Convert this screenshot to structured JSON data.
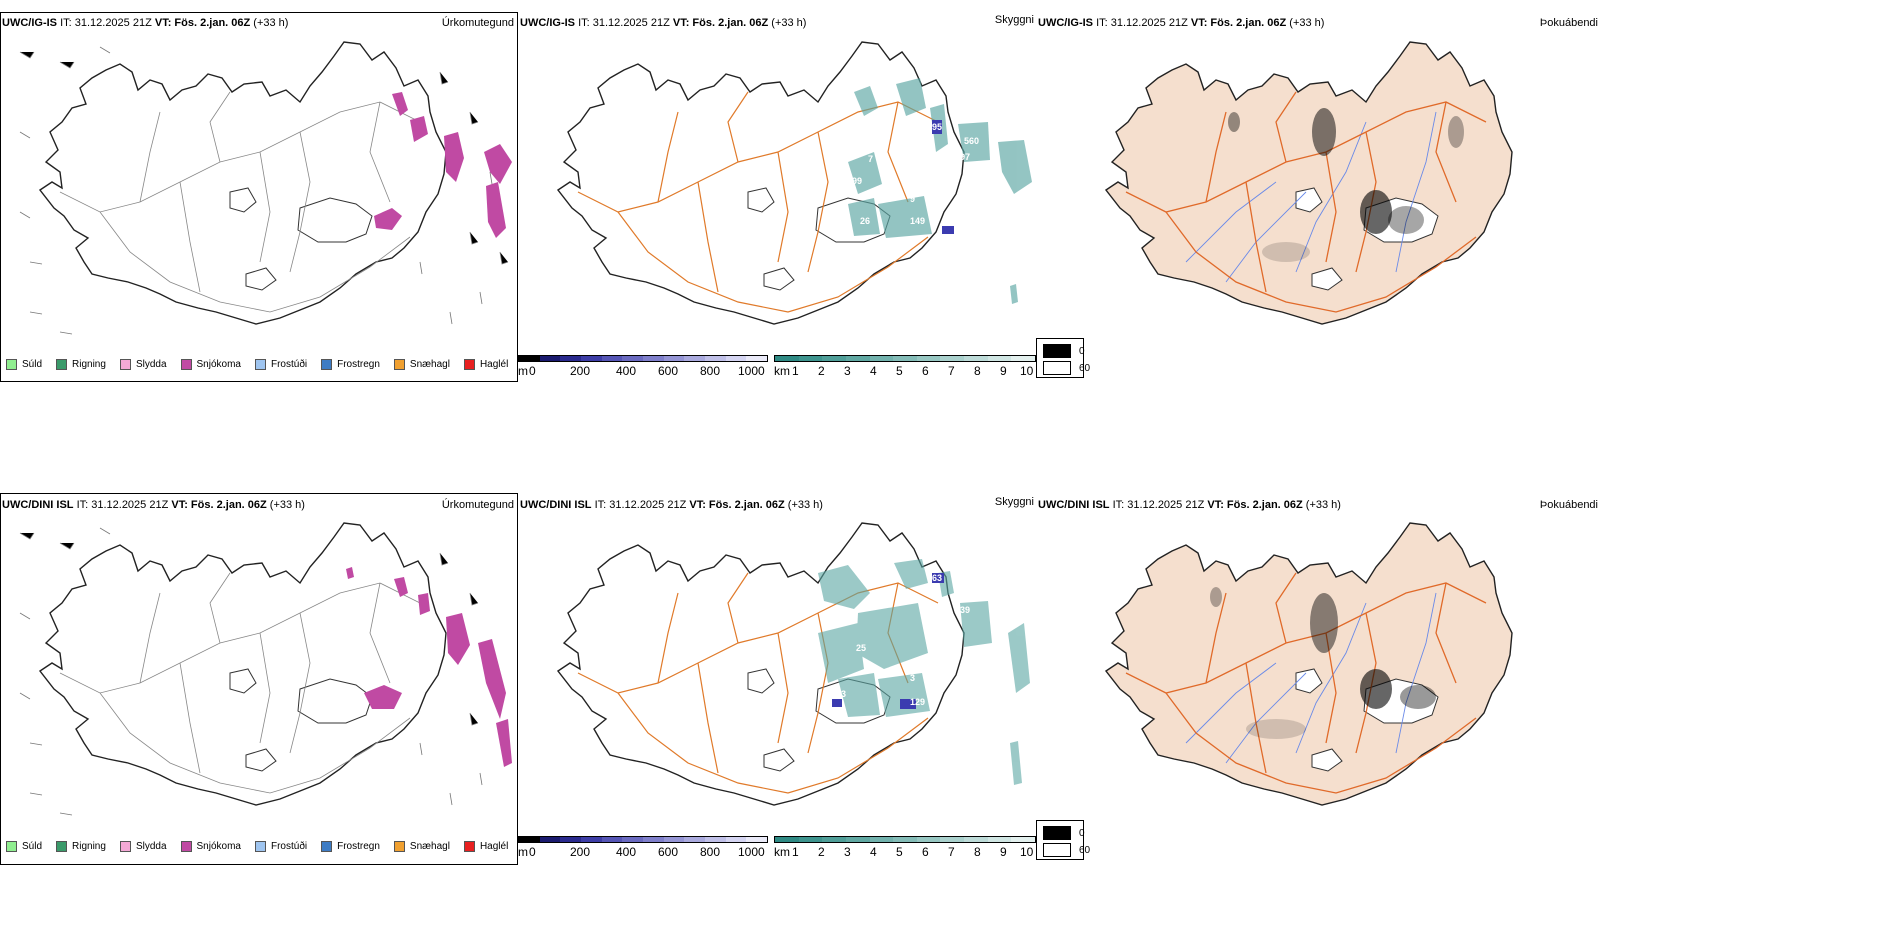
{
  "rows": [
    {
      "model": "UWC/IG-IS",
      "it": "IT: 31.12.2025 21Z",
      "vt_label": "VT:",
      "vt": "Fös. 2.jan. 06Z",
      "lead": "(+33 h)",
      "ceiling_labels": [
        "95",
        "560",
        "97",
        "7",
        "99",
        "9",
        "26",
        "149"
      ]
    },
    {
      "model": "UWC/DINI ISL",
      "it": "IT: 31.12.2025 21Z",
      "vt_label": "VT:",
      "vt": "Fös. 2.jan. 06Z",
      "lead": "(+33 h)",
      "ceiling_labels": [
        "63",
        "39",
        "25",
        "13",
        "3",
        "129"
      ]
    }
  ],
  "panel_titles": {
    "precip": "Úrkomutegund",
    "cloud": "Skyggni",
    "fog": "Þokuábendi"
  },
  "precip_legend": [
    {
      "label": "Súld",
      "color": "#90ee90"
    },
    {
      "label": "Rigning",
      "color": "#3a9a6a"
    },
    {
      "label": "Slydda",
      "color": "#f4a9d6"
    },
    {
      "label": "Snjókoma",
      "color": "#c04aa3"
    },
    {
      "label": "Frostúði",
      "color": "#9fc5f0"
    },
    {
      "label": "Frostregn",
      "color": "#3e7cc4"
    },
    {
      "label": "Snæhagl",
      "color": "#f0a030"
    },
    {
      "label": "Haglél",
      "color": "#e82020"
    }
  ],
  "ceiling_bar": {
    "unit": "m",
    "ticks": [
      "0",
      "200",
      "400",
      "600",
      "800",
      "1000"
    ],
    "colors": [
      "#000000",
      "#1a1a6e",
      "#2a2a8e",
      "#3d3da6",
      "#5555b5",
      "#6a6ac0",
      "#7f7fcb",
      "#9595d5",
      "#aaaade",
      "#c0c0e8",
      "#d5d5f2",
      "#eaeaf8"
    ]
  },
  "visibility_bar": {
    "unit": "km",
    "ticks": [
      "1",
      "2",
      "3",
      "4",
      "5",
      "6",
      "7",
      "8",
      "9",
      "10"
    ],
    "colors": [
      "#2f8a84",
      "#3e948e",
      "#4f9e98",
      "#60a8a2",
      "#72b2ad",
      "#84bcb7",
      "#97c7c2",
      "#aad1cd",
      "#bddbd8",
      "#d0e6e3",
      "#e3f0ee"
    ]
  },
  "fog_legend": {
    "values": [
      "0",
      "60"
    ]
  },
  "colors": {
    "snow": "#c04aa3",
    "cloud": "#5aa6a3",
    "ceiling": "#3b3bb0",
    "land": "#f5dfce",
    "roads": "#e06a2a",
    "rivers": "#6a8ae8"
  }
}
